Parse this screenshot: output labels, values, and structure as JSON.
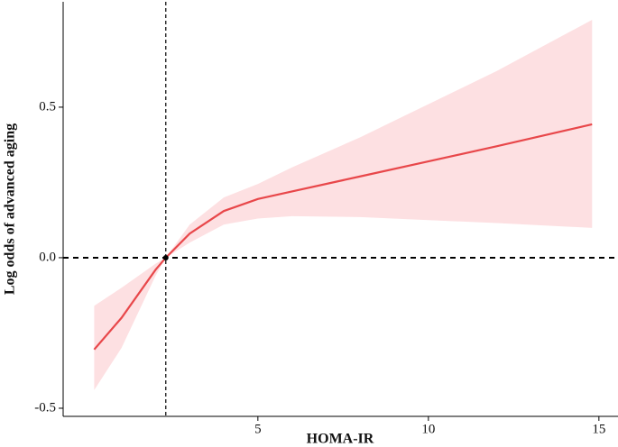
{
  "chart_data": {
    "type": "spline",
    "xlabel": "HOMA-IR",
    "ylabel": "Log odds of advanced aging",
    "x": [
      0.2,
      1,
      2,
      2.3,
      3,
      4,
      5,
      6,
      8,
      10,
      12,
      14.8
    ],
    "values": [
      -0.305,
      -0.2,
      -0.04,
      0,
      0.08,
      0.155,
      0.195,
      0.22,
      0.27,
      0.32,
      0.37,
      0.443
    ],
    "lower": [
      -0.44,
      -0.3,
      -0.06,
      0,
      0.05,
      0.11,
      0.13,
      0.138,
      0.135,
      0.125,
      0.115,
      0.099
    ],
    "upper": [
      -0.16,
      -0.1,
      -0.02,
      0,
      0.11,
      0.2,
      0.245,
      0.3,
      0.4,
      0.51,
      0.62,
      0.79
    ],
    "color": "#e8474a",
    "band_color": "#fde0e2",
    "xlim": [
      -0.71,
      15.56
    ],
    "xticks": [
      5,
      10,
      15
    ],
    "ylim": [
      -0.527,
      0.85
    ],
    "yticks": [
      -0.5,
      {
        "value": 0,
        "label": "0.0"
      },
      0.5
    ],
    "hline": 0,
    "vline": 2.3
  }
}
